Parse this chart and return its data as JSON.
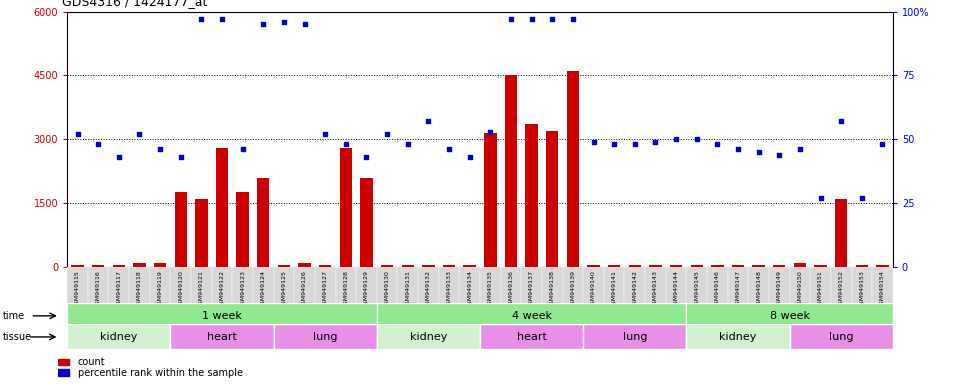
{
  "title": "GDS4316 / 1424177_at",
  "samples": [
    "GSM949115",
    "GSM949116",
    "GSM949117",
    "GSM949118",
    "GSM949119",
    "GSM949120",
    "GSM949121",
    "GSM949122",
    "GSM949123",
    "GSM949124",
    "GSM949125",
    "GSM949126",
    "GSM949127",
    "GSM949128",
    "GSM949129",
    "GSM949130",
    "GSM949131",
    "GSM949132",
    "GSM949133",
    "GSM949134",
    "GSM949135",
    "GSM949136",
    "GSM949137",
    "GSM949138",
    "GSM949139",
    "GSM949140",
    "GSM949141",
    "GSM949142",
    "GSM949143",
    "GSM949144",
    "GSM949145",
    "GSM949146",
    "GSM949147",
    "GSM949148",
    "GSM949149",
    "GSM949150",
    "GSM949151",
    "GSM949152",
    "GSM949153",
    "GSM949154"
  ],
  "counts": [
    50,
    50,
    50,
    80,
    80,
    1750,
    1600,
    2800,
    1750,
    2100,
    50,
    100,
    50,
    2800,
    2100,
    50,
    50,
    50,
    50,
    50,
    3150,
    4500,
    3350,
    3200,
    4600,
    50,
    50,
    50,
    50,
    50,
    50,
    50,
    50,
    50,
    50,
    80,
    50,
    1600,
    50,
    50
  ],
  "percentile": [
    52,
    48,
    43,
    52,
    46,
    43,
    97,
    97,
    46,
    95,
    96,
    95,
    52,
    48,
    43,
    52,
    48,
    57,
    46,
    43,
    53,
    97,
    97,
    97,
    97,
    49,
    48,
    48,
    49,
    50,
    50,
    48,
    46,
    45,
    44,
    46,
    27,
    57,
    27,
    48
  ],
  "time_groups": [
    {
      "label": "1 week",
      "start": 0,
      "end": 14
    },
    {
      "label": "4 week",
      "start": 15,
      "end": 29
    },
    {
      "label": "8 week",
      "start": 30,
      "end": 39
    }
  ],
  "tissue_groups": [
    {
      "label": "kidney",
      "start": 0,
      "end": 4,
      "color": "#d0f0d0"
    },
    {
      "label": "heart",
      "start": 5,
      "end": 9,
      "color": "#e890e8"
    },
    {
      "label": "lung",
      "start": 10,
      "end": 14,
      "color": "#e890e8"
    },
    {
      "label": "kidney",
      "start": 15,
      "end": 19,
      "color": "#d0f0d0"
    },
    {
      "label": "heart",
      "start": 20,
      "end": 24,
      "color": "#e890e8"
    },
    {
      "label": "lung",
      "start": 25,
      "end": 29,
      "color": "#e890e8"
    },
    {
      "label": "kidney",
      "start": 30,
      "end": 34,
      "color": "#d0f0d0"
    },
    {
      "label": "lung",
      "start": 35,
      "end": 39,
      "color": "#e890e8"
    }
  ],
  "time_color": "#90e890",
  "time_color_dark": "#44cc44",
  "ylim_left": [
    0,
    6000
  ],
  "ylim_right": [
    0,
    100
  ],
  "left_yticks": [
    0,
    1500,
    3000,
    4500,
    6000
  ],
  "right_yticks": [
    0,
    25,
    50,
    75,
    100
  ],
  "bar_color": "#cc0000",
  "dot_color": "#0000cc",
  "bg_color": "#ffffff",
  "xticklabel_bg": "#e0e0e0"
}
